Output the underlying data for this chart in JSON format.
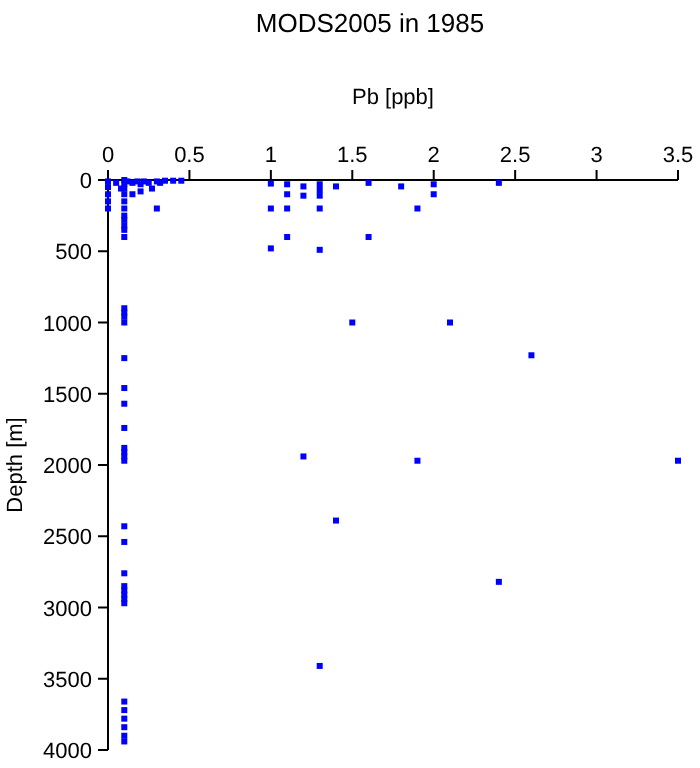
{
  "chart_data": {
    "type": "scatter",
    "title": "MODS2005 in 1985",
    "xlabel": "Pb [ppb]",
    "ylabel": "Depth [m]",
    "xlim": [
      0,
      3.5
    ],
    "xticks": [
      0,
      0.5,
      1,
      1.5,
      2,
      2.5,
      3,
      3.5
    ],
    "ylim": [
      4000,
      0
    ],
    "yticks": [
      0,
      500,
      1000,
      1500,
      2000,
      2500,
      3000,
      3500,
      4000
    ],
    "grid": false,
    "marker": "square",
    "series": [
      {
        "color": "#0000ff",
        "x": [
          0,
          0,
          0,
          0,
          0,
          0.05,
          0.08,
          0.1,
          0.1,
          0.1,
          0.1,
          0.1,
          0.1,
          0.1,
          0.1,
          0.1,
          0.1,
          0.1,
          0.1,
          0.1,
          0.1,
          0.1,
          0.1,
          0.1,
          0.1,
          0.1,
          0.1,
          0.1,
          0.1,
          0.1,
          0.1,
          0.1,
          0.1,
          0.1,
          0.1,
          0.1,
          0.1,
          0.1,
          0.1,
          0.1,
          0.1,
          0.1,
          0.1,
          0.1,
          0.12,
          0.15,
          0.18,
          0.2,
          0.22,
          0.25,
          0.27,
          0.3,
          0.32,
          0.35,
          0.4,
          0.45,
          0.3,
          0.2,
          0.15,
          1.0,
          1.0,
          1.0,
          1.1,
          1.1,
          1.1,
          1.1,
          1.2,
          1.2,
          1.3,
          1.3,
          1.3,
          1.3,
          1.3,
          1.4,
          1.5,
          1.6,
          1.6,
          1.8,
          1.9,
          2.0,
          2.0,
          2.4,
          2.1,
          2.6,
          1.2,
          1.9,
          3.5,
          1.4,
          2.4,
          1.3
        ],
        "values": [
          10,
          50,
          100,
          150,
          200,
          20,
          60,
          0,
          30,
          60,
          100,
          150,
          200,
          250,
          280,
          320,
          350,
          400,
          900,
          930,
          960,
          1000,
          1250,
          1460,
          1570,
          1740,
          1880,
          1910,
          1940,
          1970,
          2430,
          2540,
          2760,
          2850,
          2880,
          2910,
          2940,
          2970,
          3660,
          3720,
          3780,
          3840,
          3900,
          3940,
          10,
          20,
          10,
          30,
          10,
          20,
          60,
          10,
          20,
          5,
          5,
          5,
          200,
          80,
          100,
          25,
          200,
          480,
          30,
          100,
          200,
          400,
          45,
          110,
          30,
          70,
          110,
          200,
          490,
          45,
          1000,
          20,
          400,
          45,
          200,
          30,
          100,
          20,
          1000,
          1230,
          1940,
          1970,
          1970,
          2390,
          2820,
          3410
        ]
      }
    ]
  }
}
